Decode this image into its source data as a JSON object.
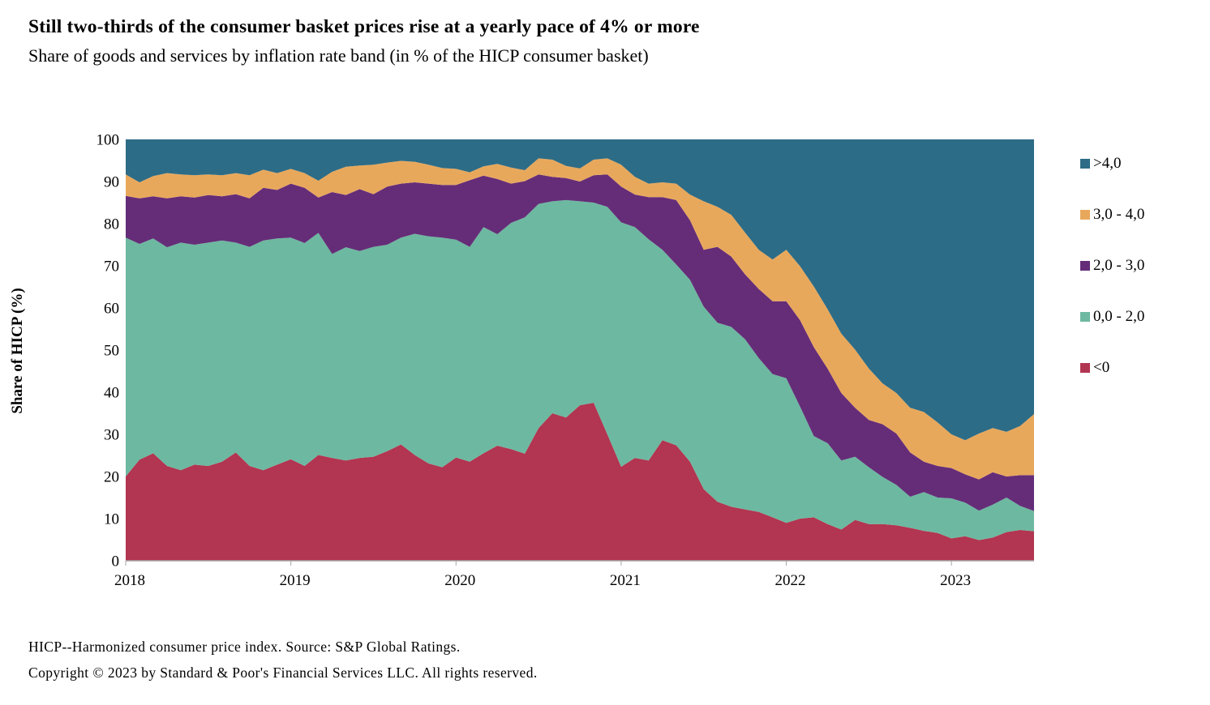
{
  "header": {
    "title": "Still two-thirds of the consumer basket prices rise at a yearly pace of 4% or more",
    "subtitle": "Share of goods and services by inflation rate band (in % of the HICP consumer basket)"
  },
  "footer": {
    "line1": "HICP--Harmonized consumer price index. Source: S&P Global Ratings.",
    "line2": "Copyright © 2023 by Standard & Poor's Financial Services LLC. All rights reserved."
  },
  "y_axis": {
    "title": "Share of HICP (%)",
    "min": 0,
    "max": 100,
    "ticks": [
      0,
      10,
      20,
      30,
      40,
      50,
      60,
      70,
      80,
      90,
      100
    ]
  },
  "x_axis": {
    "tick_labels": [
      "2018",
      "2019",
      "2020",
      "2021",
      "2022",
      "2023"
    ],
    "tick_indices": [
      0,
      12,
      24,
      36,
      48,
      60
    ]
  },
  "legend": [
    {
      "label": ">4,0",
      "color": "#2d6c86"
    },
    {
      "label": "3,0 - 4,0",
      "color": "#e8a85c"
    },
    {
      "label": "2,0 - 3,0",
      "color": "#652d78"
    },
    {
      "label": "0,0 - 2,0",
      "color": "#6db8a0"
    },
    {
      "label": "<0",
      "color": "#b23551"
    }
  ],
  "chart_data": {
    "type": "area",
    "stacked": true,
    "title": "Share of goods and services by inflation rate band",
    "ylabel": "Share of HICP (%)",
    "ylim": [
      0,
      100
    ],
    "unit": "% of HICP consumer basket",
    "x_frequency": "monthly",
    "x_start": "2018-01",
    "x_end": "2023-07",
    "x_year_ticks": [
      "2018",
      "2019",
      "2020",
      "2021",
      "2022",
      "2023"
    ],
    "legend_position": "right",
    "grid": false,
    "stack_order_bottom_to_top": [
      "<0",
      "0,0 - 2,0",
      "2,0 - 3,0",
      "3,0 - 4,0",
      ">4,0"
    ],
    "series": [
      {
        "name": "<0",
        "color": "#b23551",
        "values": [
          20.0,
          24.0,
          25.5,
          22.5,
          21.5,
          22.8,
          22.5,
          23.5,
          25.7,
          22.5,
          21.5,
          22.8,
          24.1,
          22.5,
          25.1,
          24.4,
          23.8,
          24.4,
          24.7,
          26.0,
          27.6,
          25.1,
          23.1,
          22.2,
          24.5,
          23.5,
          25.5,
          27.3,
          26.5,
          25.4,
          31.5,
          35.0,
          34.0,
          36.9,
          37.5,
          30.0,
          22.3,
          24.4,
          23.8,
          28.6,
          27.4,
          23.5,
          17.0,
          14.0,
          12.8,
          12.2,
          11.6,
          10.3,
          9.0,
          10.0,
          10.3,
          8.7,
          7.4,
          9.7,
          8.7,
          8.7,
          8.4,
          7.8,
          7.1,
          6.6,
          5.3,
          5.8,
          4.9,
          5.5,
          6.8,
          7.3,
          7.0
        ]
      },
      {
        "name": "0,0 - 2,0",
        "color": "#6db8a0",
        "values": [
          56.7,
          51.2,
          51.0,
          51.9,
          54.0,
          52.2,
          53.0,
          52.5,
          49.8,
          52.0,
          54.5,
          53.7,
          52.6,
          52.9,
          52.7,
          48.4,
          50.6,
          49.1,
          49.8,
          49.0,
          49.1,
          52.5,
          53.9,
          54.5,
          51.7,
          51.0,
          53.7,
          50.2,
          53.7,
          56.1,
          53.2,
          50.3,
          51.6,
          48.4,
          47.5,
          54.0,
          58.0,
          54.8,
          52.5,
          45.2,
          42.9,
          43.2,
          43.3,
          42.5,
          42.7,
          40.4,
          36.5,
          34.0,
          34.3,
          26.6,
          19.3,
          19.2,
          16.4,
          15.0,
          13.5,
          11.2,
          9.6,
          7.4,
          9.2,
          8.4,
          9.5,
          8.0,
          7.0,
          7.8,
          8.2,
          5.7,
          4.8
        ]
      },
      {
        "name": "2,0 - 3,0",
        "color": "#652d78",
        "values": [
          9.9,
          10.8,
          10.0,
          11.6,
          11.0,
          11.2,
          11.3,
          10.5,
          11.5,
          11.5,
          12.5,
          11.5,
          12.8,
          13.1,
          8.4,
          14.7,
          12.4,
          14.7,
          12.5,
          13.8,
          12.8,
          12.2,
          12.5,
          12.5,
          13.0,
          15.8,
          12.2,
          13.1,
          9.3,
          8.6,
          7.0,
          5.8,
          5.2,
          4.7,
          6.5,
          7.7,
          8.5,
          7.7,
          10.0,
          12.5,
          15.3,
          14.1,
          13.5,
          18.0,
          16.7,
          15.4,
          16.4,
          17.3,
          18.3,
          20.5,
          21.1,
          17.7,
          16.0,
          11.6,
          11.2,
          12.5,
          12.2,
          10.5,
          7.2,
          7.5,
          7.2,
          6.7,
          7.4,
          7.7,
          5.0,
          7.3,
          8.5
        ]
      },
      {
        "name": "3,0 - 4,0",
        "color": "#e8a85c",
        "values": [
          5.1,
          3.8,
          4.8,
          6.0,
          5.2,
          5.3,
          4.9,
          5.0,
          5.0,
          5.5,
          4.3,
          4.0,
          3.5,
          3.5,
          4.0,
          4.8,
          6.7,
          5.6,
          7.0,
          5.7,
          5.4,
          4.9,
          4.5,
          4.0,
          3.8,
          1.9,
          2.2,
          3.6,
          3.8,
          2.6,
          3.8,
          4.1,
          2.9,
          3.1,
          3.7,
          3.8,
          5.2,
          4.2,
          3.2,
          3.5,
          3.9,
          6.1,
          11.5,
          9.5,
          9.9,
          9.9,
          9.3,
          9.9,
          12.2,
          12.8,
          14.4,
          14.1,
          14.1,
          13.8,
          12.2,
          9.7,
          9.6,
          10.6,
          11.8,
          10.3,
          8.0,
          8.1,
          10.9,
          10.5,
          10.6,
          11.7,
          14.5
        ]
      },
      {
        "name": ">4,0",
        "color": "#2d6c86",
        "values": [
          8.3,
          10.2,
          8.7,
          8.0,
          8.3,
          8.5,
          8.3,
          8.5,
          8.0,
          8.5,
          7.2,
          8.0,
          7.0,
          8.0,
          9.8,
          7.7,
          6.5,
          6.2,
          6.0,
          5.5,
          5.1,
          5.3,
          6.0,
          6.8,
          7.0,
          7.8,
          6.4,
          5.8,
          6.7,
          7.3,
          4.5,
          4.8,
          6.3,
          6.9,
          4.8,
          4.5,
          6.0,
          8.9,
          10.5,
          10.2,
          10.5,
          13.1,
          14.7,
          16.0,
          17.9,
          22.1,
          26.2,
          28.5,
          26.2,
          30.1,
          34.9,
          40.3,
          46.1,
          49.9,
          54.4,
          57.9,
          60.2,
          63.7,
          64.7,
          67.2,
          70.0,
          71.4,
          69.8,
          68.5,
          69.4,
          68.0,
          65.2
        ]
      }
    ],
    "axis_color": "#a6a6a6"
  }
}
